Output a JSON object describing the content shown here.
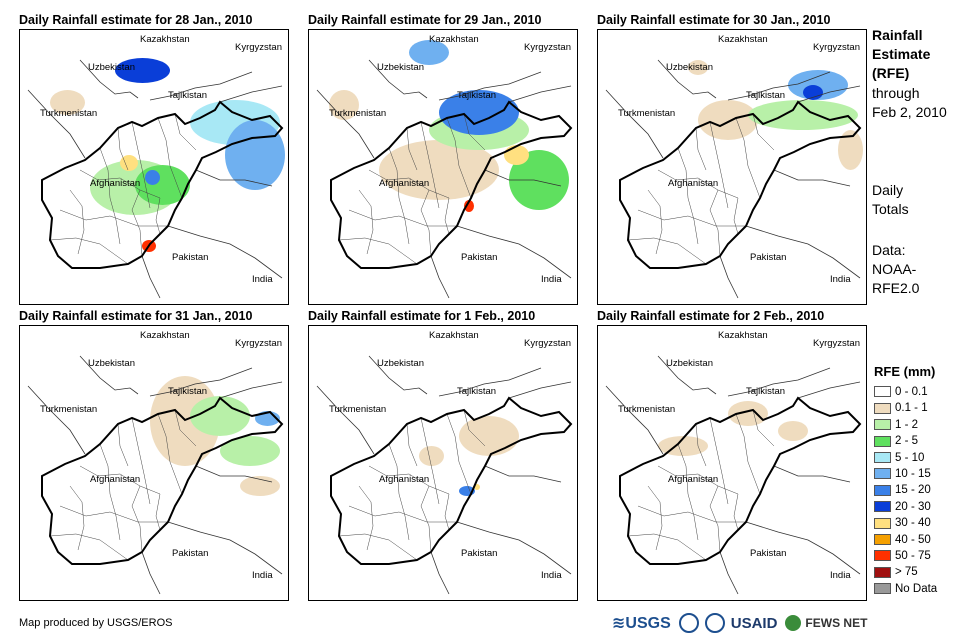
{
  "panels": [
    {
      "title": "Daily Rainfall estimate for 28 Jan., 2010"
    },
    {
      "title": "Daily Rainfall estimate for 29 Jan., 2010"
    },
    {
      "title": "Daily Rainfall estimate for 30 Jan., 2010"
    },
    {
      "title": "Daily Rainfall estimate for 31 Jan., 2010"
    },
    {
      "title": "Daily Rainfall estimate for 1 Feb., 2010"
    },
    {
      "title": "Daily Rainfall estimate for 2 Feb., 2010"
    }
  ],
  "places": {
    "kazakhstan": "Kazakhstan",
    "kyrgyzstan": "Kyrgyzstan",
    "uzbekistan": "Uzbekistan",
    "tajikistan": "Tajikistan",
    "turkmenistan": "Turkmenistan",
    "afghanistan": "Afghanistan",
    "pakistan": "Pakistan",
    "india": "India"
  },
  "side": {
    "line1": "Rainfall",
    "line2": "Estimate",
    "line3": "(RFE)",
    "line4": "through",
    "line5": "Feb 2, 2010",
    "daily1": "Daily",
    "daily2": "Totals",
    "data1": "Data:",
    "data2": "NOAA-",
    "data3": "RFE2.0"
  },
  "legend": {
    "title": "RFE (mm)",
    "items": [
      {
        "label": "0 - 0.1",
        "color": "#ffffff"
      },
      {
        "label": "0.1 - 1",
        "color": "#efdcbf"
      },
      {
        "label": "1 - 2",
        "color": "#b8f0a8"
      },
      {
        "label": "2 - 5",
        "color": "#5fe05f"
      },
      {
        "label": "5 - 10",
        "color": "#a8e8f5"
      },
      {
        "label": "10 - 15",
        "color": "#6fb0f0"
      },
      {
        "label": "15 - 20",
        "color": "#3a80e8"
      },
      {
        "label": "20 - 30",
        "color": "#0a3ed8"
      },
      {
        "label": "30 - 40",
        "color": "#ffe080"
      },
      {
        "label": "40 - 50",
        "color": "#f5a000"
      },
      {
        "label": "50 - 75",
        "color": "#ff3000"
      },
      {
        "label": "> 75",
        "color": "#a01010"
      },
      {
        "label": "No Data",
        "color": "#999999"
      }
    ]
  },
  "credit": "Map produced by USGS/EROS",
  "logos": {
    "usgs": "≋USGS",
    "usaid": "USAID",
    "fews": "FEWS NET"
  }
}
